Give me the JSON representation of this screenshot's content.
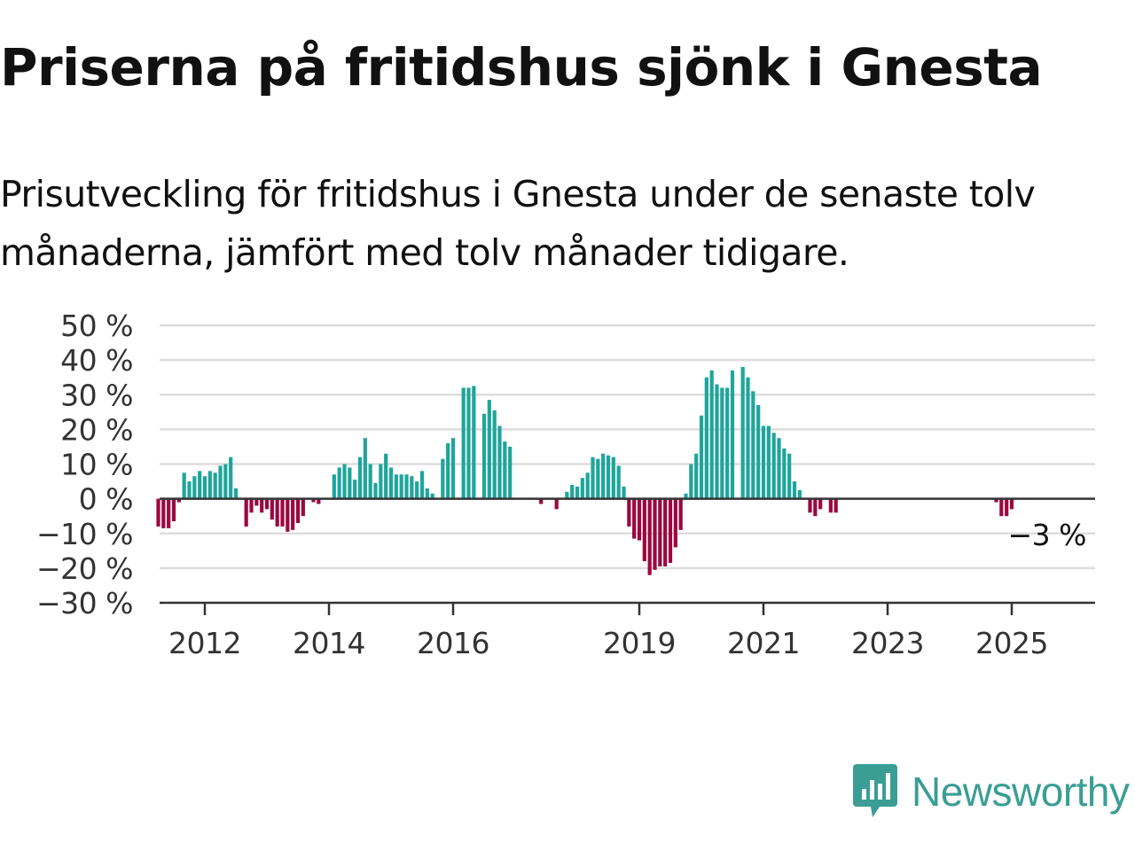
{
  "header": {
    "title": "Priserna på fritidshus sjönk i Gnesta",
    "subtitle": "Prisutveckling för fritidshus i Gnesta under de senaste tolv månaderna, jämfört med tolv månader tidigare."
  },
  "brand": {
    "name": "Newsworthy",
    "icon": "bar-chart-speech-bubble-icon",
    "color": "#3a9e94"
  },
  "colors": {
    "positive": "#1fa59b",
    "negative": "#9b0840",
    "grid": "#dddddd",
    "axis": "#333333"
  },
  "chart_data": {
    "type": "bar",
    "x_unit": "month",
    "ylim": [
      -30,
      50
    ],
    "yticks": [
      50,
      40,
      30,
      20,
      10,
      0,
      -10,
      -20,
      -30
    ],
    "ytick_labels": [
      "50 %",
      "40 %",
      "30 %",
      "20 %",
      "10 %",
      "0 %",
      "−10 %",
      "−20 %",
      "−30 %"
    ],
    "xticks": [
      "2012",
      "2014",
      "2016",
      "2019",
      "2021",
      "2023",
      "2025"
    ],
    "x_start": "2011-04",
    "last_value_label": "−3 %",
    "values": [
      -8,
      -8.5,
      -8.5,
      -6.5,
      -1,
      7.5,
      5,
      6.5,
      8,
      6.5,
      8,
      7.5,
      9.5,
      10,
      12,
      3,
      null,
      -8,
      -4,
      -2,
      -4,
      -3,
      -6,
      -8,
      -8,
      -9.5,
      -9,
      -7,
      -5,
      null,
      -1,
      -1.5,
      null,
      null,
      7,
      9,
      10,
      9,
      5.5,
      12,
      17.5,
      10,
      4.5,
      10,
      13,
      9,
      7,
      7,
      7,
      6.5,
      5,
      8,
      3,
      1.5,
      null,
      11.5,
      16,
      17.5,
      null,
      32,
      32,
      32.5,
      null,
      24.5,
      28.5,
      25.5,
      21,
      16.5,
      15,
      null,
      null,
      null,
      null,
      null,
      -1.5,
      null,
      null,
      -3,
      null,
      2,
      4,
      3.5,
      6,
      7.5,
      12,
      11.5,
      13,
      12.5,
      12,
      9.5,
      3.5,
      -8,
      -11.5,
      -12,
      -18,
      -22,
      -20.5,
      -19.5,
      -19.5,
      -18.5,
      -14,
      -9,
      1.5,
      10,
      13,
      24,
      35,
      37,
      33,
      32,
      32,
      37,
      null,
      38,
      35,
      31,
      27,
      21,
      21,
      19,
      17.5,
      14.5,
      13,
      5,
      2.5,
      null,
      -4,
      -5,
      -3,
      null,
      -4,
      -4,
      null,
      null,
      null,
      null,
      null,
      null,
      null,
      null,
      null,
      null,
      null,
      null,
      null,
      null,
      null,
      null,
      null,
      null,
      null,
      null,
      null,
      null,
      null,
      null,
      null,
      null,
      null,
      null,
      null,
      null,
      -1,
      -5,
      -5,
      -3
    ]
  }
}
